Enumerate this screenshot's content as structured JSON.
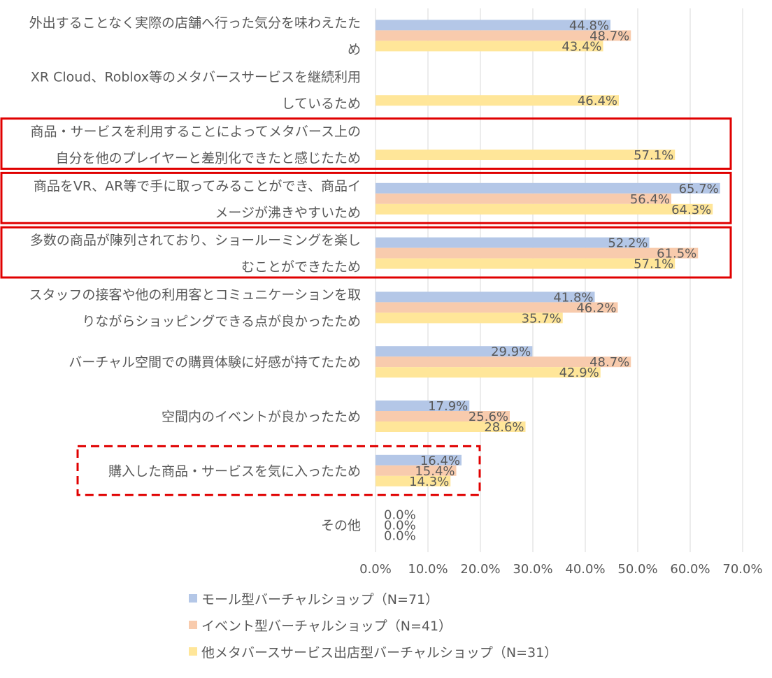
{
  "chart_data": {
    "type": "bar",
    "orientation": "horizontal",
    "categories": [
      [
        "外出することなく実際の店舗へ行った気分を味わえたた",
        "め"
      ],
      [
        "XR Cloud、Roblox等のメタバースサービスを継続利用",
        "しているため"
      ],
      [
        "商品・サービスを利用することによってメタバース上の",
        "自分を他のプレイヤーと差別化できたと感じたため"
      ],
      [
        "商品をVR、AR等で手に取ってみることができ、商品イ",
        "メージが沸きやすいため"
      ],
      [
        "多数の商品が陳列されており、ショールーミングを楽し",
        "むことができたため"
      ],
      [
        "スタッフの接客や他の利用客とコミュニケーションを取",
        "りながらショッピングできる点が良かったため"
      ],
      [
        "バーチャル空間での購買体験に好感が持てたため"
      ],
      [
        "空間内のイベントが良かったため"
      ],
      [
        "購入した商品・サービスを気に入ったため"
      ],
      [
        "その他"
      ]
    ],
    "series": [
      {
        "name": "モール型バーチャルショップ（N=71）",
        "color": "#B4C7E7",
        "values": [
          44.8,
          null,
          null,
          65.7,
          52.2,
          41.8,
          29.9,
          17.9,
          16.4,
          0.0
        ],
        "labels": [
          "44.8%",
          "",
          "",
          "65.7%",
          "52.2%",
          "41.8%",
          "29.9%",
          "17.9%",
          "16.4%",
          "0.0%"
        ]
      },
      {
        "name": "イベント型バーチャルショップ（N=41）",
        "color": "#F8CBAD",
        "values": [
          48.7,
          null,
          null,
          56.4,
          61.5,
          46.2,
          48.7,
          25.6,
          15.4,
          0.0
        ],
        "labels": [
          "48.7%",
          "",
          "",
          "56.4%",
          "61.5%",
          "46.2%",
          "48.7%",
          "25.6%",
          "15.4%",
          "0.0%"
        ]
      },
      {
        "name": "他メタバースサービス出店型バーチャルショップ（N=31）",
        "color": "#FFE699",
        "values": [
          43.4,
          46.4,
          57.1,
          64.3,
          57.1,
          35.7,
          42.9,
          28.6,
          14.3,
          0.0
        ],
        "labels": [
          "43.4%",
          "46.4%",
          "57.1%",
          "64.3%",
          "57.1%",
          "35.7%",
          "42.9%",
          "28.6%",
          "14.3%",
          "0.0%"
        ]
      }
    ],
    "x_ticks": [
      "0.0%",
      "10.0%",
      "20.0%",
      "30.0%",
      "40.0%",
      "50.0%",
      "60.0%",
      "70.0%"
    ],
    "xlim": [
      0,
      70
    ],
    "grid": true,
    "legend_position": "bottom",
    "highlight_solid": [
      2,
      3,
      4
    ],
    "highlight_dashed": [
      8
    ],
    "highlight_color": "#E00000",
    "gridline_color": "#D9D9D9",
    "text_color": "#595959"
  }
}
